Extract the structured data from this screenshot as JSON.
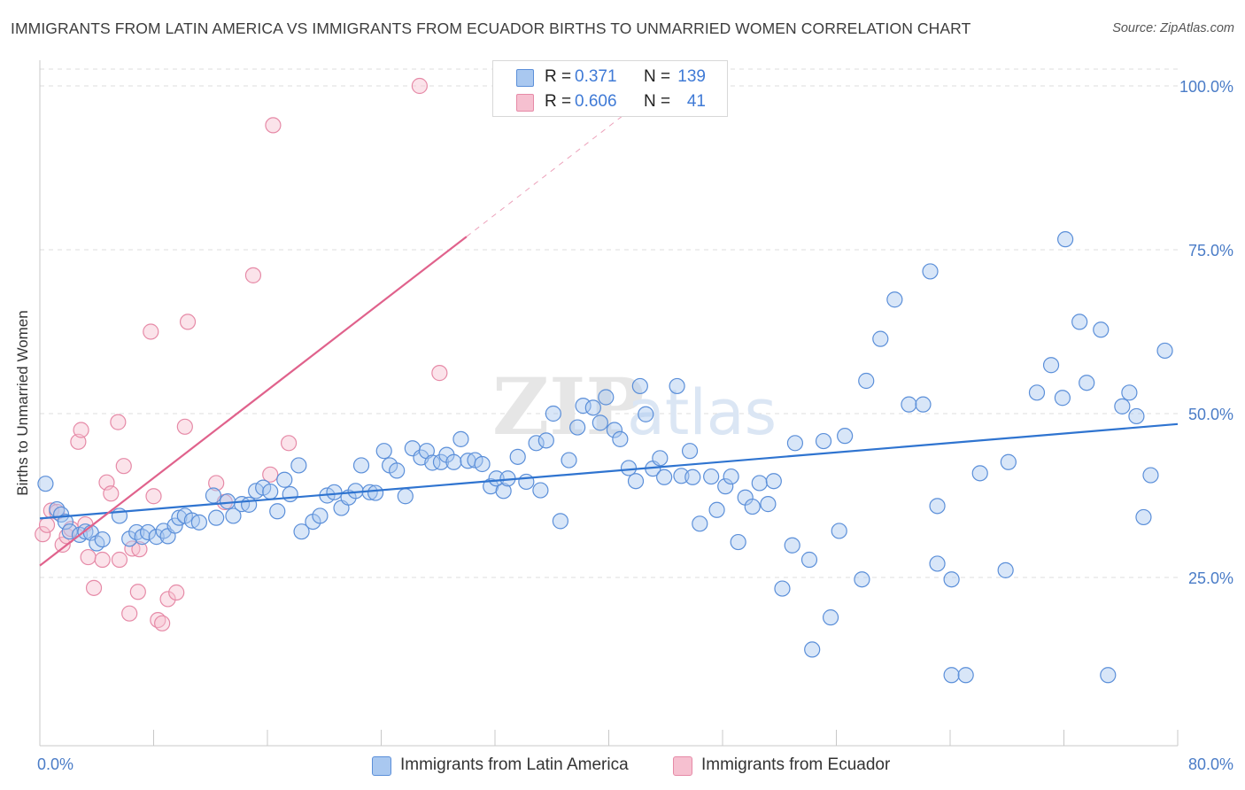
{
  "title": "IMMIGRANTS FROM LATIN AMERICA VS IMMIGRANTS FROM ECUADOR BIRTHS TO UNMARRIED WOMEN CORRELATION CHART",
  "source": "Source: ZipAtlas.com",
  "watermark": {
    "zip": "ZIP",
    "atlas": "atlas"
  },
  "legend": {
    "series1": {
      "r_label": "R =",
      "r_value": "0.371",
      "n_label": "N =",
      "n_value": "139"
    },
    "series2": {
      "r_label": "R =",
      "r_value": "0.606",
      "n_label": "N =",
      "n_value": "41"
    }
  },
  "bottom_legend": {
    "series1": "Immigrants from Latin America",
    "series2": "Immigrants from Ecuador"
  },
  "colors": {
    "blue_fill": "#a9c8f0",
    "blue_stroke": "#5b8fd9",
    "blue_line": "#2f74d0",
    "pink_fill": "#f6c0d0",
    "pink_stroke": "#e68aa7",
    "pink_line": "#e0628c",
    "tick": "#4a7cc7",
    "grid": "#dcdcdc"
  },
  "chart_data": {
    "type": "scatter",
    "title": "IMMIGRANTS FROM LATIN AMERICA VS IMMIGRANTS FROM ECUADOR BIRTHS TO UNMARRIED WOMEN CORRELATION CHART",
    "xlabel": "",
    "ylabel": "Births to Unmarried Women",
    "xlim": [
      0,
      80
    ],
    "ylim": [
      0,
      102
    ],
    "x_tick_labels": [
      "0.0%",
      "80.0%"
    ],
    "y_ticks": [
      25,
      50,
      75,
      100
    ],
    "y_tick_labels": [
      "25.0%",
      "50.0%",
      "75.0%",
      "100.0%"
    ],
    "series": [
      {
        "name": "Immigrants from Latin America",
        "color": "#5b8fd9",
        "trend": {
          "x0": 0,
          "y0": 34.0,
          "x1": 80,
          "y1": 48.4
        },
        "points": [
          [
            0.4,
            39.3
          ],
          [
            1.2,
            35.4
          ],
          [
            1.5,
            34.6
          ],
          [
            1.8,
            33.5
          ],
          [
            2.1,
            32.0
          ],
          [
            2.8,
            31.5
          ],
          [
            3.2,
            32.0
          ],
          [
            3.6,
            31.8
          ],
          [
            4.0,
            30.2
          ],
          [
            4.4,
            30.8
          ],
          [
            5.6,
            34.4
          ],
          [
            6.3,
            30.9
          ],
          [
            6.8,
            31.9
          ],
          [
            7.2,
            31.2
          ],
          [
            7.6,
            31.9
          ],
          [
            8.2,
            31.2
          ],
          [
            8.7,
            32.1
          ],
          [
            9.0,
            31.3
          ],
          [
            9.5,
            32.9
          ],
          [
            9.8,
            34.1
          ],
          [
            10.2,
            34.4
          ],
          [
            10.7,
            33.7
          ],
          [
            11.2,
            33.4
          ],
          [
            12.2,
            37.5
          ],
          [
            12.4,
            34.1
          ],
          [
            13.2,
            36.6
          ],
          [
            13.6,
            34.4
          ],
          [
            14.2,
            36.2
          ],
          [
            14.7,
            36.1
          ],
          [
            15.2,
            38.2
          ],
          [
            15.7,
            38.7
          ],
          [
            16.2,
            38.1
          ],
          [
            16.7,
            35.1
          ],
          [
            17.2,
            39.9
          ],
          [
            17.6,
            37.7
          ],
          [
            18.2,
            42.1
          ],
          [
            18.4,
            32.0
          ],
          [
            19.2,
            33.5
          ],
          [
            19.7,
            34.4
          ],
          [
            20.2,
            37.5
          ],
          [
            20.7,
            38.0
          ],
          [
            21.2,
            35.6
          ],
          [
            21.7,
            37.2
          ],
          [
            22.2,
            38.2
          ],
          [
            22.6,
            42.1
          ],
          [
            23.2,
            38.0
          ],
          [
            23.6,
            37.9
          ],
          [
            24.2,
            44.3
          ],
          [
            24.6,
            42.1
          ],
          [
            25.1,
            41.3
          ],
          [
            25.7,
            37.4
          ],
          [
            26.2,
            44.7
          ],
          [
            26.8,
            43.3
          ],
          [
            27.2,
            44.3
          ],
          [
            27.6,
            42.5
          ],
          [
            28.2,
            42.6
          ],
          [
            28.6,
            43.7
          ],
          [
            29.1,
            42.6
          ],
          [
            29.6,
            46.1
          ],
          [
            30.1,
            42.8
          ],
          [
            30.6,
            42.9
          ],
          [
            31.1,
            42.3
          ],
          [
            31.7,
            38.9
          ],
          [
            32.1,
            40.1
          ],
          [
            32.6,
            38.2
          ],
          [
            32.9,
            40.1
          ],
          [
            33.6,
            43.4
          ],
          [
            34.2,
            39.6
          ],
          [
            34.9,
            45.5
          ],
          [
            35.2,
            38.3
          ],
          [
            35.6,
            45.9
          ],
          [
            36.1,
            50.0
          ],
          [
            36.6,
            33.6
          ],
          [
            37.2,
            42.9
          ],
          [
            37.8,
            47.9
          ],
          [
            38.2,
            51.2
          ],
          [
            38.9,
            50.9
          ],
          [
            39.4,
            48.6
          ],
          [
            39.8,
            52.5
          ],
          [
            40.4,
            47.5
          ],
          [
            40.8,
            46.1
          ],
          [
            41.4,
            41.7
          ],
          [
            41.9,
            39.7
          ],
          [
            42.2,
            54.2
          ],
          [
            42.6,
            49.9
          ],
          [
            43.1,
            41.6
          ],
          [
            43.6,
            43.2
          ],
          [
            43.9,
            40.3
          ],
          [
            44.8,
            54.2
          ],
          [
            45.1,
            40.5
          ],
          [
            45.7,
            44.3
          ],
          [
            45.9,
            40.3
          ],
          [
            46.4,
            33.2
          ],
          [
            47.2,
            40.4
          ],
          [
            47.6,
            35.3
          ],
          [
            48.2,
            38.9
          ],
          [
            48.6,
            40.4
          ],
          [
            49.1,
            30.4
          ],
          [
            49.6,
            37.2
          ],
          [
            50.1,
            35.8
          ],
          [
            50.6,
            39.4
          ],
          [
            51.2,
            36.2
          ],
          [
            51.6,
            39.7
          ],
          [
            52.2,
            23.3
          ],
          [
            52.9,
            29.9
          ],
          [
            53.1,
            45.5
          ],
          [
            54.1,
            27.7
          ],
          [
            54.3,
            14.0
          ],
          [
            55.1,
            45.8
          ],
          [
            55.6,
            18.9
          ],
          [
            56.2,
            32.1
          ],
          [
            56.6,
            46.6
          ],
          [
            57.8,
            24.7
          ],
          [
            58.1,
            55.0
          ],
          [
            59.1,
            61.4
          ],
          [
            60.1,
            67.4
          ],
          [
            61.1,
            51.4
          ],
          [
            62.1,
            51.4
          ],
          [
            62.6,
            71.7
          ],
          [
            63.1,
            27.1
          ],
          [
            63.1,
            35.9
          ],
          [
            64.1,
            24.7
          ],
          [
            64.1,
            10.1
          ],
          [
            65.1,
            10.1
          ],
          [
            66.1,
            40.9
          ],
          [
            67.9,
            26.1
          ],
          [
            68.1,
            42.6
          ],
          [
            70.1,
            53.2
          ],
          [
            71.1,
            57.4
          ],
          [
            71.9,
            52.4
          ],
          [
            72.1,
            76.6
          ],
          [
            73.1,
            64.0
          ],
          [
            73.6,
            54.7
          ],
          [
            74.6,
            62.8
          ],
          [
            75.1,
            10.1
          ],
          [
            76.1,
            51.1
          ],
          [
            76.6,
            53.2
          ],
          [
            77.1,
            49.6
          ],
          [
            77.6,
            34.2
          ],
          [
            78.1,
            40.6
          ],
          [
            79.1,
            59.6
          ]
        ]
      },
      {
        "name": "Immigrants from Ecuador",
        "color": "#e68aa7",
        "trend": {
          "x0": 0,
          "y0": 26.8,
          "x1": 30.0,
          "y1": 77.0,
          "dash_to_x": 42.5,
          "dash_to_y": 98.0
        },
        "points": [
          [
            0.2,
            31.6
          ],
          [
            0.5,
            33.0
          ],
          [
            0.8,
            35.2
          ],
          [
            1.2,
            35.0
          ],
          [
            1.6,
            30.0
          ],
          [
            1.9,
            31.3
          ],
          [
            2.2,
            32.4
          ],
          [
            2.7,
            45.7
          ],
          [
            2.9,
            47.5
          ],
          [
            3.2,
            33.1
          ],
          [
            3.4,
            28.1
          ],
          [
            3.8,
            23.4
          ],
          [
            4.4,
            27.7
          ],
          [
            4.7,
            39.5
          ],
          [
            5.0,
            37.8
          ],
          [
            5.5,
            48.7
          ],
          [
            5.6,
            27.7
          ],
          [
            5.9,
            42.0
          ],
          [
            6.3,
            19.5
          ],
          [
            6.5,
            29.4
          ],
          [
            6.9,
            22.8
          ],
          [
            7.0,
            29.3
          ],
          [
            7.8,
            62.5
          ],
          [
            8.0,
            37.4
          ],
          [
            8.3,
            18.5
          ],
          [
            8.6,
            18.0
          ],
          [
            9.0,
            21.7
          ],
          [
            9.6,
            22.7
          ],
          [
            10.2,
            48.0
          ],
          [
            10.4,
            64.0
          ],
          [
            12.4,
            39.4
          ],
          [
            13.0,
            36.5
          ],
          [
            15.0,
            71.1
          ],
          [
            16.2,
            40.7
          ],
          [
            16.4,
            94.0
          ],
          [
            17.5,
            45.5
          ],
          [
            26.7,
            100.0
          ],
          [
            28.1,
            56.2
          ]
        ]
      }
    ]
  }
}
